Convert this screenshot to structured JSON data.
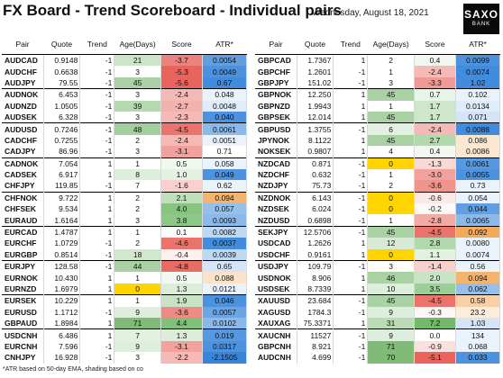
{
  "header": {
    "title": "FX Board - Trend Scoreboard - Individual pairs",
    "date": "Wednesday, August 18, 2021",
    "logo_line1": "SAXO",
    "logo_line2": "BANK"
  },
  "columns": [
    "Pair",
    "Quote",
    "Trend",
    "Age(Days)",
    "Score",
    "ATR*"
  ],
  "colors": {
    "age_green_max": "#74b56a",
    "age_yellow": "#ffd400",
    "score_red_max": "#e8645c",
    "score_green_max": "#72ba6a",
    "atr_blue_max": "#2c7fd8",
    "atr_orange_max": "#f2a14a"
  },
  "left_table": [
    [
      {
        "pair": "AUDCAD",
        "quote": "0.9148",
        "trend": "-1",
        "age": "21",
        "score": "-3.7",
        "atr": "0.0054",
        "age_shade": 0.25,
        "score_shade": -0.8,
        "atr_shade": 0.75
      },
      {
        "pair": "AUDCHF",
        "quote": "0.6638",
        "trend": "-1",
        "age": "3",
        "score": "-5.3",
        "atr": "0.0049",
        "age_shade": 0,
        "score_shade": -1,
        "atr_shade": 0.85
      },
      {
        "pair": "AUDJPY",
        "quote": "79.55",
        "trend": "-1",
        "age": "45",
        "score": "-5.6",
        "atr": "0.67",
        "age_shade": 0.55,
        "score_shade": -1,
        "atr_shade": 0.9
      }
    ],
    [
      {
        "pair": "AUDNOK",
        "quote": "6.453",
        "trend": "-1",
        "age": "3",
        "score": "-2.4",
        "atr": "0.048",
        "age_shade": 0,
        "score_shade": -0.45,
        "atr_shade": 0.1
      },
      {
        "pair": "AUDNZD",
        "quote": "1.0505",
        "trend": "-1",
        "age": "39",
        "score": "-2.7",
        "atr": "0.0048",
        "age_shade": 0.45,
        "score_shade": -0.5,
        "atr_shade": 0.15
      },
      {
        "pair": "AUDSEK",
        "quote": "6.328",
        "trend": "-1",
        "age": "3",
        "score": "-2.3",
        "atr": "0.040",
        "age_shade": 0,
        "score_shade": -0.45,
        "atr_shade": 0.85
      }
    ],
    [
      {
        "pair": "AUDUSD",
        "quote": "0.7246",
        "trend": "-1",
        "age": "48",
        "score": "-4.5",
        "atr": "0.0061",
        "age_shade": 0.6,
        "score_shade": -0.9,
        "atr_shade": 0.55
      },
      {
        "pair": "CADCHF",
        "quote": "0.7255",
        "trend": "-1",
        "age": "2",
        "score": "-2.4",
        "atr": "0.0051",
        "age_shade": 0,
        "score_shade": -0.45,
        "atr_shade": 0.1
      },
      {
        "pair": "CADJPY",
        "quote": "86.96",
        "trend": "-1",
        "age": "3",
        "score": "-3.1",
        "atr": "0.71",
        "age_shade": 0,
        "score_shade": -0.6,
        "atr_shade": 0
      }
    ],
    [
      {
        "pair": "CADNOK",
        "quote": "7.054",
        "trend": "1",
        "age": "1",
        "score": "0.5",
        "atr": "0.058",
        "age_shade": 0,
        "score_shade": 0.1,
        "atr_shade": 0.1
      },
      {
        "pair": "CADSEK",
        "quote": "6.917",
        "trend": "1",
        "age": "8",
        "score": "1.0",
        "atr": "0.049",
        "age_shade": 0.1,
        "score_shade": 0.2,
        "atr_shade": 0.85
      },
      {
        "pair": "CHFJPY",
        "quote": "119.85",
        "trend": "-1",
        "age": "7",
        "score": "-1.6",
        "atr": "0.62",
        "age_shade": 0,
        "score_shade": -0.3,
        "atr_shade": 0.1
      }
    ],
    [
      {
        "pair": "CHFNOK",
        "quote": "9.722",
        "trend": "1",
        "age": "2",
        "score": "2.1",
        "atr": "0.094",
        "age_shade": 0,
        "score_shade": 0.45,
        "atr_shade": -0.8
      },
      {
        "pair": "CHFSEK",
        "quote": "9.534",
        "trend": "1",
        "age": "2",
        "score": "4.0",
        "atr": "0.057",
        "age_shade": 0,
        "score_shade": 0.85,
        "atr_shade": 0.5
      },
      {
        "pair": "EURAUD",
        "quote": "1.6164",
        "trend": "1",
        "age": "3",
        "score": "3.8",
        "atr": "0.0093",
        "age_shade": 0,
        "score_shade": 0.8,
        "atr_shade": 0.55
      }
    ],
    [
      {
        "pair": "EURCAD",
        "quote": "1.4787",
        "trend": "1",
        "age": "1",
        "score": "0.1",
        "atr": "0.0082",
        "age_shade": 0,
        "score_shade": 0.05,
        "atr_shade": 0.3
      },
      {
        "pair": "EURCHF",
        "quote": "1.0729",
        "trend": "-1",
        "age": "2",
        "score": "-4.6",
        "atr": "0.0037",
        "age_shade": 0,
        "score_shade": -0.9,
        "atr_shade": 0.9
      },
      {
        "pair": "EURGBP",
        "quote": "0.8514",
        "trend": "-1",
        "age": "18",
        "score": "-0.4",
        "atr": "0.0039",
        "age_shade": 0.2,
        "score_shade": -0.1,
        "atr_shade": 0.3
      }
    ],
    [
      {
        "pair": "EURJPY",
        "quote": "128.58",
        "trend": "-1",
        "age": "44",
        "score": "-4.8",
        "atr": "0.65",
        "age_shade": 0.55,
        "score_shade": -0.95,
        "atr_shade": 0.2
      },
      {
        "pair": "EURNOK",
        "quote": "10.430",
        "trend": "1",
        "age": "1",
        "score": "0.5",
        "atr": "0.088",
        "age_shade": 0,
        "score_shade": 0.1,
        "atr_shade": -0.3
      },
      {
        "pair": "EURNZD",
        "quote": "1.6979",
        "trend": "1",
        "age": "0",
        "score": "1.3",
        "atr": "0.0121",
        "age_shade": -1,
        "score_shade": 0.25,
        "atr_shade": 0.1
      }
    ],
    [
      {
        "pair": "EURSEK",
        "quote": "10.229",
        "trend": "1",
        "age": "1",
        "score": "1.9",
        "atr": "0.046",
        "age_shade": 0,
        "score_shade": 0.4,
        "atr_shade": 0.85
      },
      {
        "pair": "EURUSD",
        "quote": "1.1712",
        "trend": "-1",
        "age": "9",
        "score": "-3.6",
        "atr": "0.0057",
        "age_shade": 0.1,
        "score_shade": -0.75,
        "atr_shade": 0.7
      },
      {
        "pair": "GBPAUD",
        "quote": "1.8984",
        "trend": "1",
        "age": "71",
        "score": "4.4",
        "atr": "0.0102",
        "age_shade": 0.9,
        "score_shade": 0.9,
        "atr_shade": 0.55
      }
    ],
    [
      {
        "pair": "USDCNH",
        "quote": "6.486",
        "trend": "1",
        "age": "7",
        "score": "1.3",
        "atr": "0.019",
        "age_shade": 0.05,
        "score_shade": 0.25,
        "atr_shade": 0.8
      },
      {
        "pair": "EURCNH",
        "quote": "7.596",
        "trend": "-1",
        "age": "9",
        "score": "-3.1",
        "atr": "0.0317",
        "age_shade": 0.1,
        "score_shade": -0.6,
        "atr_shade": 0.85
      },
      {
        "pair": "CNHJPY",
        "quote": "16.928",
        "trend": "-1",
        "age": "3",
        "score": "-2.2",
        "atr": "-2.1505",
        "age_shade": 0,
        "score_shade": -0.45,
        "atr_shade": 0.95
      }
    ]
  ],
  "right_table": [
    [
      {
        "pair": "GBPCAD",
        "quote": "1.7367",
        "trend": "1",
        "age": "2",
        "score": "0.4",
        "atr": "0.0099",
        "age_shade": 0,
        "score_shade": 0.1,
        "atr_shade": 0.85
      },
      {
        "pair": "GBPCHF",
        "quote": "1.2601",
        "trend": "-1",
        "age": "1",
        "score": "-2.4",
        "atr": "0.0074",
        "age_shade": 0,
        "score_shade": -0.45,
        "atr_shade": 0.9
      },
      {
        "pair": "GBPJPY",
        "quote": "151.02",
        "trend": "-1",
        "age": "3",
        "score": "-3.3",
        "atr": "1.02",
        "age_shade": 0,
        "score_shade": -0.65,
        "atr_shade": 0.9
      }
    ],
    [
      {
        "pair": "GBPNOK",
        "quote": "12.250",
        "trend": "1",
        "age": "45",
        "score": "0.7",
        "atr": "0.102",
        "age_shade": 0.55,
        "score_shade": 0.15,
        "atr_shade": 0.1
      },
      {
        "pair": "GBPNZD",
        "quote": "1.9943",
        "trend": "1",
        "age": "1",
        "score": "1.7",
        "atr": "0.0134",
        "age_shade": 0,
        "score_shade": 0.35,
        "atr_shade": 0.15
      },
      {
        "pair": "GBPSEK",
        "quote": "12.014",
        "trend": "1",
        "age": "45",
        "score": "1.7",
        "atr": "0.071",
        "age_shade": 0.55,
        "score_shade": 0.35,
        "atr_shade": 0.2
      }
    ],
    [
      {
        "pair": "GBPUSD",
        "quote": "1.3755",
        "trend": "-1",
        "age": "6",
        "score": "-2.4",
        "atr": "0.0088",
        "age_shade": 0.05,
        "score_shade": -0.45,
        "atr_shade": 0.9
      },
      {
        "pair": "JPYNOK",
        "quote": "8.1122",
        "trend": "1",
        "age": "45",
        "score": "2.7",
        "atr": "0.086",
        "age_shade": 0.55,
        "score_shade": 0.55,
        "atr_shade": -0.25
      },
      {
        "pair": "NOKSEK",
        "quote": "0.9807",
        "trend": "1",
        "age": "4",
        "score": "0.4",
        "atr": "0.0086",
        "age_shade": 0,
        "score_shade": 0.1,
        "atr_shade": -0.25
      }
    ],
    [
      {
        "pair": "NZDCAD",
        "quote": "0.871",
        "trend": "-1",
        "age": "0",
        "score": "-1.3",
        "atr": "0.0061",
        "age_shade": -1,
        "score_shade": -0.25,
        "atr_shade": 0.8
      },
      {
        "pair": "NZDCHF",
        "quote": "0.632",
        "trend": "-1",
        "age": "1",
        "score": "-3.0",
        "atr": "0.0055",
        "age_shade": 0,
        "score_shade": -0.6,
        "atr_shade": 0.85
      },
      {
        "pair": "NZDJPY",
        "quote": "75.73",
        "trend": "-1",
        "age": "2",
        "score": "-3.6",
        "atr": "0.73",
        "age_shade": 0,
        "score_shade": -0.7,
        "atr_shade": 0.1
      }
    ],
    [
      {
        "pair": "NZDNOK",
        "quote": "6.143",
        "trend": "-1",
        "age": "0",
        "score": "-0.6",
        "atr": "0.054",
        "age_shade": -1,
        "score_shade": -0.15,
        "atr_shade": 0.1
      },
      {
        "pair": "NZDSEK",
        "quote": "6.024",
        "trend": "-1",
        "age": "0",
        "score": "-0.2",
        "atr": "0.044",
        "age_shade": -1,
        "score_shade": -0.05,
        "atr_shade": 0.75
      },
      {
        "pair": "NZDUSD",
        "quote": "0.6898",
        "trend": "-1",
        "age": "1",
        "score": "-2.8",
        "atr": "0.0065",
        "age_shade": 0,
        "score_shade": -0.55,
        "atr_shade": 0.55
      }
    ],
    [
      {
        "pair": "SEKJPY",
        "quote": "12.5706",
        "trend": "-1",
        "age": "45",
        "score": "-4.5",
        "atr": "0.092",
        "age_shade": 0.55,
        "score_shade": -0.9,
        "atr_shade": -0.9
      },
      {
        "pair": "USDCAD",
        "quote": "1.2626",
        "trend": "1",
        "age": "12",
        "score": "2.8",
        "atr": "0.0080",
        "age_shade": 0.15,
        "score_shade": 0.55,
        "atr_shade": 0.1
      },
      {
        "pair": "USDCHF",
        "quote": "0.9161",
        "trend": "1",
        "age": "0",
        "score": "1.1",
        "atr": "0.0074",
        "age_shade": -1,
        "score_shade": 0.2,
        "atr_shade": 0.1
      }
    ],
    [
      {
        "pair": "USDJPY",
        "quote": "109.79",
        "trend": "-1",
        "age": "3",
        "score": "-1.4",
        "atr": "0.56",
        "age_shade": 0,
        "score_shade": -0.3,
        "atr_shade": 0.1
      },
      {
        "pair": "USDNOK",
        "quote": "8.906",
        "trend": "1",
        "age": "46",
        "score": "2.0",
        "atr": "0.094",
        "age_shade": 0.55,
        "score_shade": 0.4,
        "atr_shade": -0.8
      },
      {
        "pair": "USDSEK",
        "quote": "8.7339",
        "trend": "1",
        "age": "10",
        "score": "3.5",
        "atr": "0.062",
        "age_shade": 0.1,
        "score_shade": 0.7,
        "atr_shade": 0.5
      }
    ],
    [
      {
        "pair": "XAUUSD",
        "quote": "23.684",
        "trend": "-1",
        "age": "45",
        "score": "-4.5",
        "atr": "0.58",
        "age_shade": 0.55,
        "score_shade": -0.9,
        "atr_shade": -0.5
      },
      {
        "pair": "XAGUSD",
        "quote": "1784.3",
        "trend": "-1",
        "age": "9",
        "score": "-0.3",
        "atr": "23.2",
        "age_shade": 0.1,
        "score_shade": -0.05,
        "atr_shade": -0.2
      },
      {
        "pair": "XAUXAG",
        "quote": "75.3371",
        "trend": "1",
        "age": "31",
        "score": "7.2",
        "atr": "1.03",
        "age_shade": 0.4,
        "score_shade": 1,
        "atr_shade": 0.2
      }
    ],
    [
      {
        "pair": "XAUCNH",
        "quote": "11527",
        "trend": "-1",
        "age": "9",
        "score": "0.0",
        "atr": "134",
        "age_shade": 0.1,
        "score_shade": 0,
        "atr_shade": 0.1
      },
      {
        "pair": "GBPCNH",
        "quote": "8.921",
        "trend": "-1",
        "age": "71",
        "score": "-0.9",
        "atr": "0.068",
        "age_shade": 0.9,
        "score_shade": -0.2,
        "atr_shade": 0.1
      },
      {
        "pair": "AUDCNH",
        "quote": "4.699",
        "trend": "-1",
        "age": "70",
        "score": "-5.1",
        "atr": "0.033",
        "age_shade": 0.9,
        "score_shade": -1,
        "atr_shade": 0.85
      }
    ]
  ],
  "footnote": "*ATR based on 50-day EMA, shading based on co"
}
